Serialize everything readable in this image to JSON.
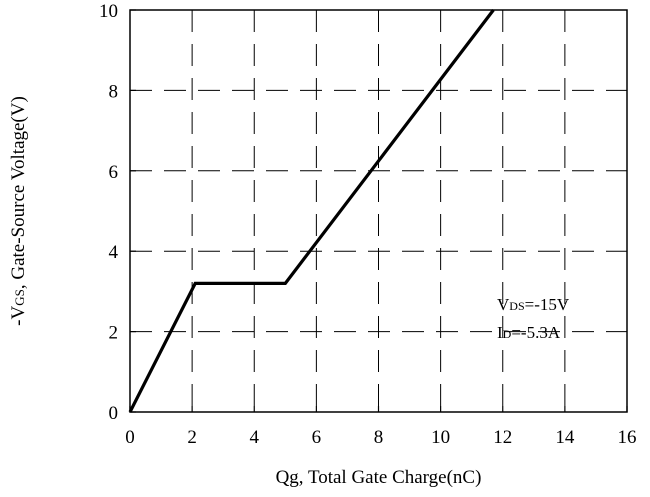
{
  "chart_data": {
    "type": "line",
    "title": "",
    "xlabel": "Qg, Total Gate Charge(nC)",
    "ylabel": {
      "prefix": "-V",
      "subscript": "GS",
      "suffix": ", Gate-Source Voltage(V)"
    },
    "xlim": [
      0,
      16
    ],
    "ylim": [
      0,
      10
    ],
    "x_ticks": [
      0,
      2,
      4,
      6,
      8,
      10,
      12,
      14,
      16
    ],
    "y_ticks": [
      0,
      2,
      4,
      6,
      8,
      10
    ],
    "grid": true,
    "grid_style": "dashed",
    "series": [
      {
        "x": [
          0,
          2.1,
          5.0,
          11.7
        ],
        "y": [
          0,
          3.2,
          3.2,
          10.0
        ]
      }
    ],
    "annotations": [
      {
        "main": "V",
        "sub": "DS",
        "rest": "=-15V"
      },
      {
        "main": "I",
        "sub": "D",
        "rest": "=-5.3A"
      }
    ]
  }
}
